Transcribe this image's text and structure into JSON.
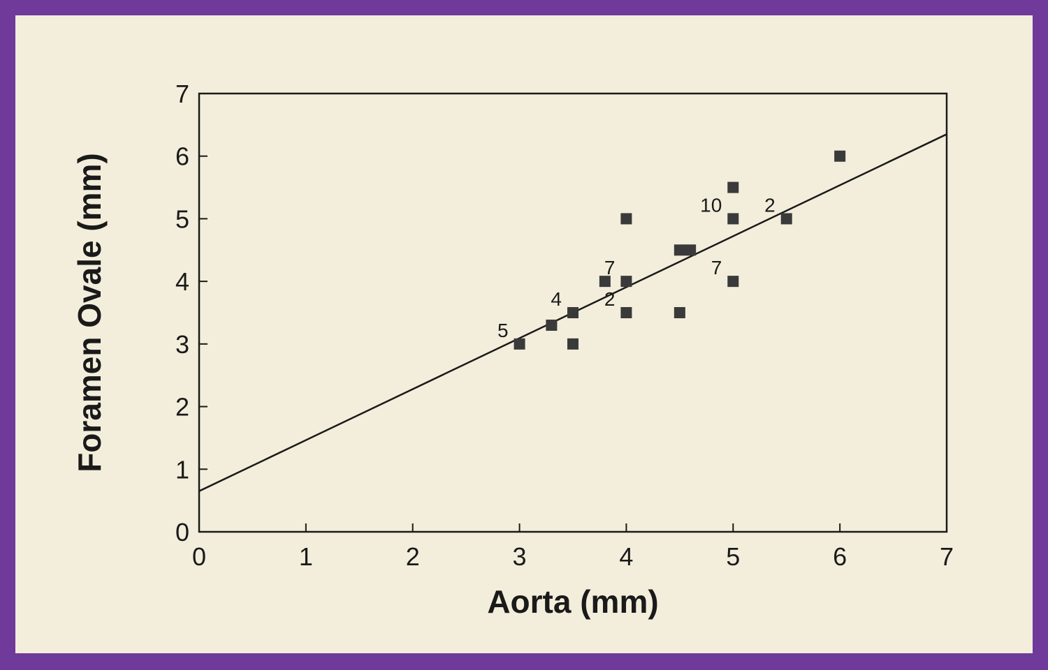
{
  "chart_data": {
    "type": "scatter",
    "title": "",
    "xlabel": "Aorta (mm)",
    "ylabel": "Foramen Ovale (mm)",
    "xlim": [
      0,
      7
    ],
    "ylim": [
      0,
      7
    ],
    "xticks": [
      "0",
      "1",
      "2",
      "3",
      "4",
      "5",
      "6",
      "7"
    ],
    "yticks": [
      "0",
      "1",
      "2",
      "3",
      "4",
      "5",
      "6",
      "7"
    ],
    "grid": false,
    "colors": {
      "marker": "#3a3a3a",
      "line": "#1a1a1a",
      "axis": "#1a1a1a"
    },
    "series": [
      {
        "points": [
          {
            "x": 3.0,
            "y": 3.0,
            "label": "5"
          },
          {
            "x": 3.3,
            "y": 3.3,
            "label": ""
          },
          {
            "x": 3.5,
            "y": 3.5,
            "label": "4"
          },
          {
            "x": 3.5,
            "y": 3.0,
            "label": ""
          },
          {
            "x": 3.8,
            "y": 4.0,
            "label": ""
          },
          {
            "x": 4.0,
            "y": 4.0,
            "label": "7"
          },
          {
            "x": 4.0,
            "y": 5.0,
            "label": ""
          },
          {
            "x": 4.0,
            "y": 3.5,
            "label": "2"
          },
          {
            "x": 4.5,
            "y": 3.5,
            "label": ""
          },
          {
            "x": 4.5,
            "y": 4.5,
            "label": ""
          },
          {
            "x": 4.6,
            "y": 4.5,
            "label": ""
          },
          {
            "x": 5.0,
            "y": 5.5,
            "label": ""
          },
          {
            "x": 5.0,
            "y": 5.0,
            "label": "10"
          },
          {
            "x": 5.0,
            "y": 4.0,
            "label": "7"
          },
          {
            "x": 5.5,
            "y": 5.0,
            "label": "2"
          },
          {
            "x": 6.0,
            "y": 6.0,
            "label": ""
          }
        ]
      }
    ],
    "regression_line": {
      "x": [
        0,
        7
      ],
      "y": [
        0.65,
        6.35
      ]
    }
  }
}
